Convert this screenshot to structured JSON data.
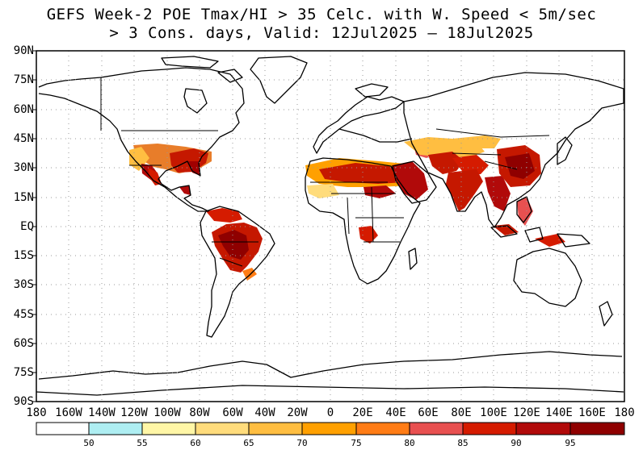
{
  "title": {
    "line1": "GEFS Week-2 POE Tmax/HI > 35 Celc. with W. Speed < 5m/sec",
    "line2": "> 3 Cons. days, Valid: 12Jul2025 – 18Jul2025"
  },
  "map": {
    "projection": "equirectangular",
    "lat_labels": [
      "90N",
      "75N",
      "60N",
      "45N",
      "30N",
      "15N",
      "EQ",
      "15S",
      "30S",
      "45S",
      "60S",
      "75S",
      "90S"
    ],
    "lon_labels": [
      "180",
      "160W",
      "140W",
      "120W",
      "100W",
      "80W",
      "60W",
      "40W",
      "20W",
      "0",
      "20E",
      "40E",
      "60E",
      "80E",
      "100E",
      "120E",
      "140E",
      "160E",
      "180"
    ],
    "gridlines": "dotted",
    "colors": {
      "coastline": "#000000",
      "grid": "#999999"
    }
  },
  "colorbar": {
    "levels": [
      "50",
      "55",
      "60",
      "65",
      "70",
      "75",
      "80",
      "85",
      "90",
      "95"
    ],
    "colors": [
      "#ffffff",
      "#aeeef2",
      "#fff6a6",
      "#ffdc7c",
      "#ffbe41",
      "#ffa000",
      "#ff7c15",
      "#e85050",
      "#d51b00",
      "#b10a0a",
      "#8f0000"
    ]
  }
}
